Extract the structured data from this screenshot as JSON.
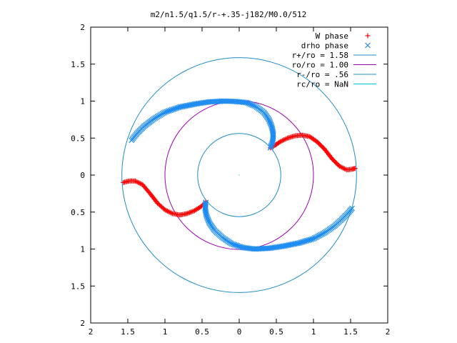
{
  "chart_data": {
    "type": "scatter",
    "title": "m2/n1.5/q1.5/r-+.35-j182/M0.0/512",
    "xlim": [
      -2,
      2
    ],
    "ylim": [
      -2,
      2
    ],
    "x_ticks": [
      -2,
      -1.5,
      -1,
      -0.5,
      0,
      0.5,
      1,
      1.5,
      2
    ],
    "y_ticks": [
      -2,
      -1.5,
      -1,
      -0.5,
      0,
      0.5,
      1,
      1.5,
      2
    ],
    "x_tick_labels": [
      "2",
      "1.5",
      "1",
      "0.5",
      "0",
      "0.5",
      "1",
      "1.5",
      "2"
    ],
    "y_tick_labels": [
      "2",
      "1.5",
      "1",
      "0.5",
      "0",
      "0.5",
      "1",
      "1.5",
      "2"
    ],
    "grid": false,
    "legend_position": "top-right",
    "series": [
      {
        "name": "W phase",
        "marker": "plus",
        "color": "#ff0000",
        "points": [
          [
            0.42,
            0.37
          ],
          [
            0.48,
            0.4
          ],
          [
            0.55,
            0.45
          ],
          [
            0.65,
            0.5
          ],
          [
            0.75,
            0.53
          ],
          [
            0.85,
            0.54
          ],
          [
            0.95,
            0.52
          ],
          [
            1.05,
            0.45
          ],
          [
            1.15,
            0.35
          ],
          [
            1.25,
            0.22
          ],
          [
            1.35,
            0.12
          ],
          [
            1.45,
            0.07
          ],
          [
            1.52,
            0.08
          ],
          [
            1.56,
            0.09
          ],
          [
            -0.45,
            -0.37
          ],
          [
            -0.52,
            -0.43
          ],
          [
            -0.6,
            -0.48
          ],
          [
            -0.7,
            -0.52
          ],
          [
            -0.8,
            -0.54
          ],
          [
            -0.9,
            -0.52
          ],
          [
            -1.0,
            -0.47
          ],
          [
            -1.1,
            -0.38
          ],
          [
            -1.2,
            -0.25
          ],
          [
            -1.3,
            -0.13
          ],
          [
            -1.4,
            -0.08
          ],
          [
            -1.48,
            -0.08
          ],
          [
            -1.56,
            -0.1
          ]
        ]
      },
      {
        "name": "drho phase",
        "marker": "cross",
        "color": "#1e8cf0",
        "points": [
          [
            0.42,
            0.37
          ],
          [
            0.45,
            0.45
          ],
          [
            0.46,
            0.55
          ],
          [
            0.44,
            0.65
          ],
          [
            0.4,
            0.75
          ],
          [
            0.33,
            0.85
          ],
          [
            0.22,
            0.93
          ],
          [
            0.1,
            0.98
          ],
          [
            -0.05,
            0.995
          ],
          [
            -0.2,
            1.0
          ],
          [
            -0.4,
            0.99
          ],
          [
            -0.6,
            0.96
          ],
          [
            -0.8,
            0.92
          ],
          [
            -1.0,
            0.85
          ],
          [
            -1.15,
            0.76
          ],
          [
            -1.28,
            0.66
          ],
          [
            -1.38,
            0.56
          ],
          [
            -1.45,
            0.47
          ],
          [
            -0.45,
            -0.37
          ],
          [
            -0.46,
            -0.45
          ],
          [
            -0.44,
            -0.55
          ],
          [
            -0.4,
            -0.65
          ],
          [
            -0.33,
            -0.75
          ],
          [
            -0.22,
            -0.85
          ],
          [
            -0.1,
            -0.93
          ],
          [
            0.05,
            -0.98
          ],
          [
            0.2,
            -1.0
          ],
          [
            0.4,
            -0.99
          ],
          [
            0.6,
            -0.96
          ],
          [
            0.8,
            -0.92
          ],
          [
            1.0,
            -0.86
          ],
          [
            1.15,
            -0.78
          ],
          [
            1.28,
            -0.69
          ],
          [
            1.38,
            -0.6
          ],
          [
            1.46,
            -0.52
          ],
          [
            1.52,
            -0.45
          ]
        ]
      },
      {
        "name": "r+/ro = 1.58",
        "type": "circle",
        "radius": 1.58,
        "color": "#1e8cc8"
      },
      {
        "name": "ro/ro = 1.00",
        "type": "circle",
        "radius": 1.0,
        "color": "#a000b4"
      },
      {
        "name": "r-/ro = .56",
        "type": "circle",
        "radius": 0.56,
        "color": "#1e8cc8"
      },
      {
        "name": "rc/ro = NaN",
        "type": "circle",
        "radius": null,
        "color": "#00c8c8"
      }
    ]
  }
}
